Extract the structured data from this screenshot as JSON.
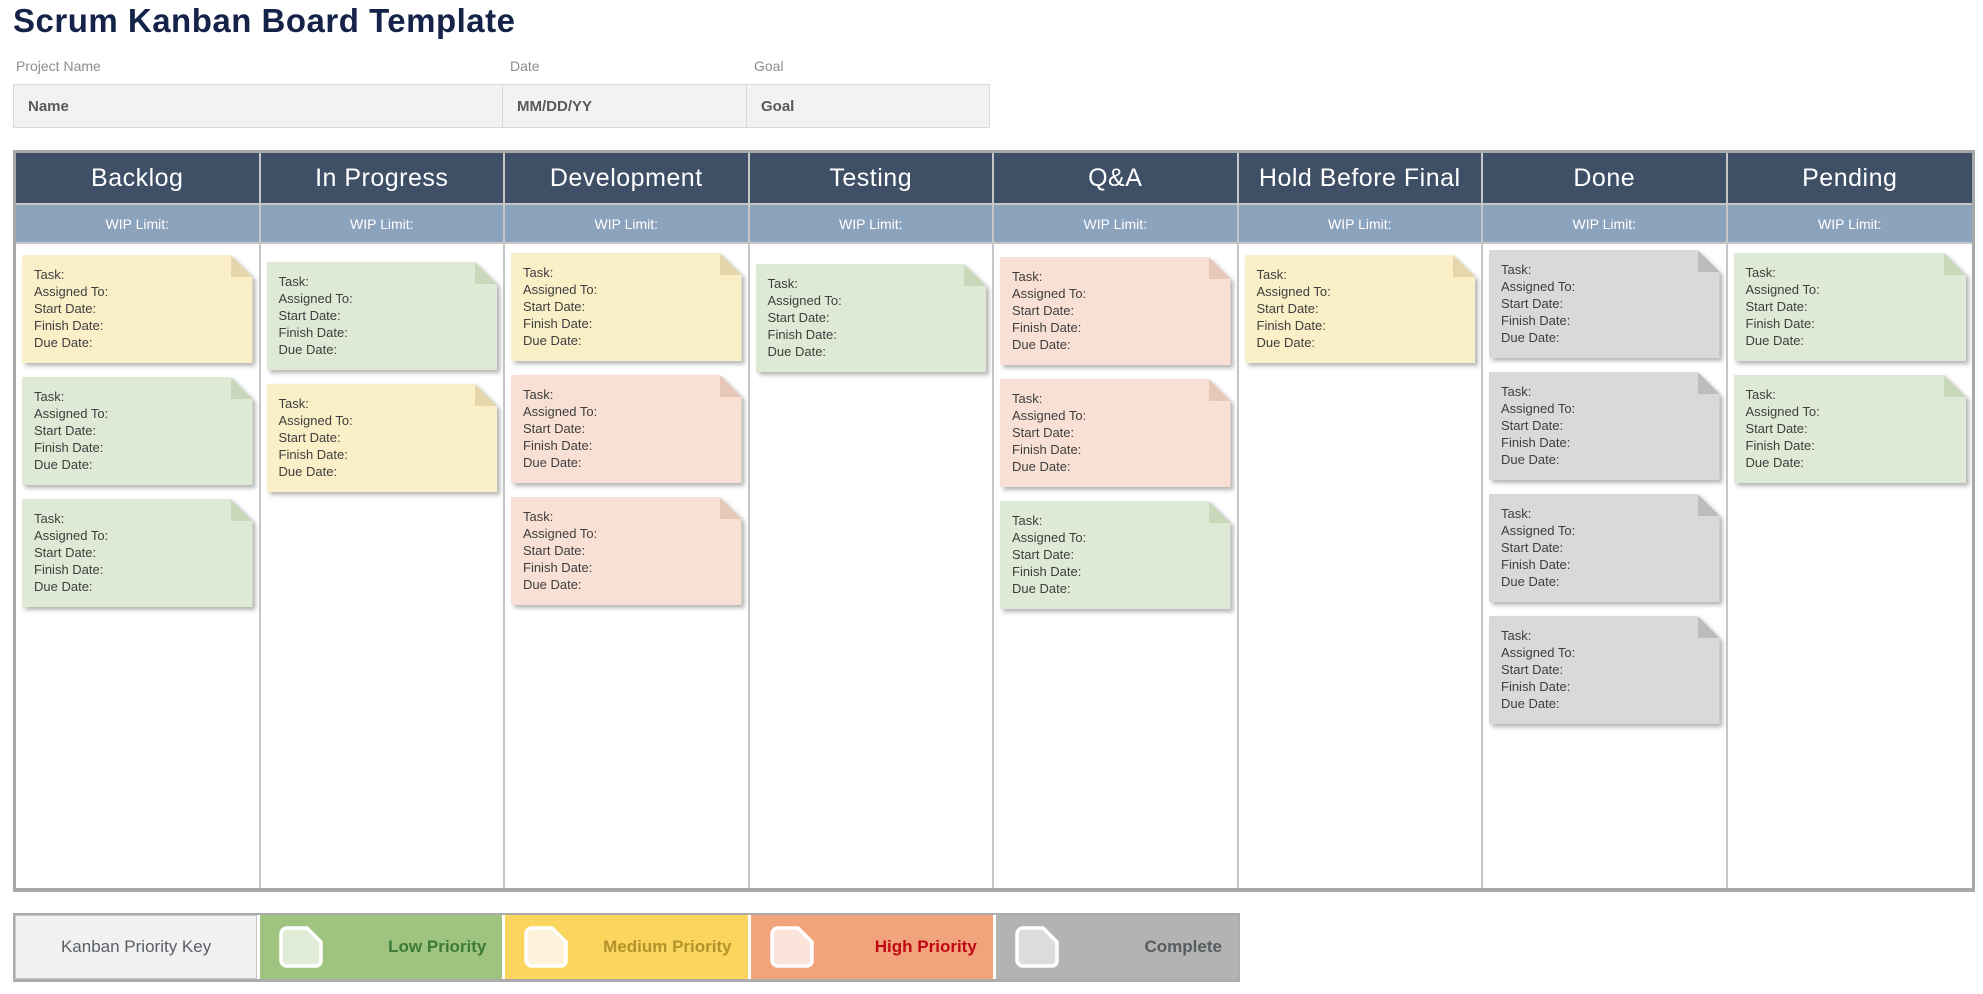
{
  "title": "Scrum Kanban Board Template",
  "form": {
    "fields": [
      {
        "label": "Project Name",
        "value": "Name"
      },
      {
        "label": "Date",
        "value": "MM/DD/YY"
      },
      {
        "label": "Goal",
        "value": "Goal"
      }
    ]
  },
  "board": {
    "wip_label": "WIP Limit:",
    "card_lines": [
      "Task:",
      "Assigned To:",
      "Start Date:",
      "Finish Date:",
      "Due Date:"
    ],
    "columns": [
      {
        "title": "Backlog",
        "cards": [
          "medium",
          "low",
          "low"
        ]
      },
      {
        "title": "In Progress",
        "cards": [
          "low",
          "medium"
        ]
      },
      {
        "title": "Development",
        "cards": [
          "medium",
          "high",
          "high"
        ]
      },
      {
        "title": "Testing",
        "cards": [
          "low"
        ]
      },
      {
        "title": "Q&A",
        "cards": [
          "high",
          "high",
          "low"
        ]
      },
      {
        "title": "Hold Before Final",
        "cards": [
          "medium"
        ]
      },
      {
        "title": "Done",
        "cards": [
          "complete",
          "complete",
          "complete",
          "complete"
        ]
      },
      {
        "title": "Pending",
        "cards": [
          "low",
          "low"
        ]
      }
    ]
  },
  "legend": {
    "key_label": "Kanban Priority Key",
    "items": [
      {
        "id": "low",
        "label": "Low Priority",
        "bg": "#9EC47F",
        "icon_fill": "#E0ECD6",
        "text_color": "#3D7A36"
      },
      {
        "id": "medium",
        "label": "Medium Priority",
        "bg": "#FBD65F",
        "icon_fill": "#FDF3DB",
        "text_color": "#B5922A"
      },
      {
        "id": "high",
        "label": "High Priority",
        "bg": "#F1A47B",
        "icon_fill": "#FBE4D9",
        "text_color": "#C00613"
      },
      {
        "id": "complete",
        "label": "Complete",
        "bg": "#B3B3B3",
        "icon_fill": "#DCDCDC",
        "text_color": "#555B5E"
      }
    ]
  },
  "colors": {
    "title": "#152349",
    "header_bg": "#3F5066",
    "wip_bg": "#8CA3BE",
    "priorities": {
      "low": {
        "bg": "#DEEAD5",
        "fold": "#C8D8BA"
      },
      "medium": {
        "bg": "#FBEFC8",
        "fold": "#E5D6AB"
      },
      "high": {
        "bg": "#F9E0D4",
        "fold": "#E6C8B8"
      },
      "complete": {
        "bg": "#D9D9D9",
        "fold": "#BCBCBC"
      }
    }
  }
}
